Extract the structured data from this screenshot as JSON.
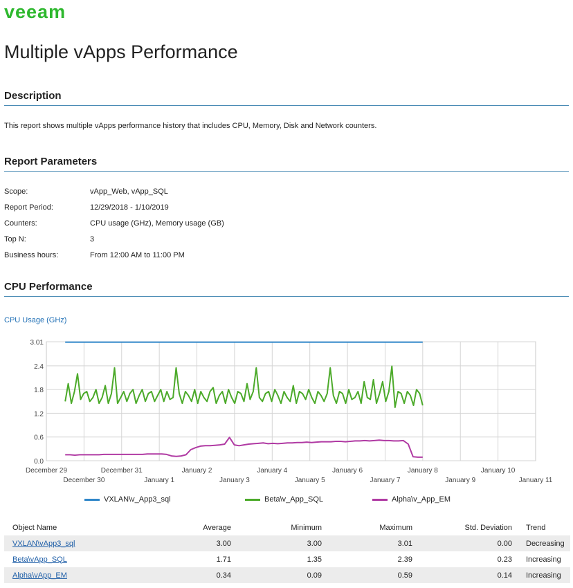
{
  "header": {
    "logo_text": "veeam",
    "title": "Multiple vApps Performance"
  },
  "description": {
    "heading": "Description",
    "text": "This report shows multiple vApps performance history that includes CPU, Memory, Disk and Network counters."
  },
  "parameters": {
    "heading": "Report Parameters",
    "rows": [
      {
        "label": "Scope:",
        "value": "vApp_Web, vApp_SQL"
      },
      {
        "label": "Report Period:",
        "value": "12/29/2018 - 1/10/2019"
      },
      {
        "label": "Counters:",
        "value": "CPU usage (GHz), Memory usage (GB)"
      },
      {
        "label": "Top N:",
        "value": "3"
      },
      {
        "label": "Business hours:",
        "value": "From 12:00 AM to 11:00 PM"
      }
    ]
  },
  "cpu": {
    "heading": "CPU Performance",
    "chart_title": "CPU Usage (GHz)",
    "legend": [
      {
        "name": "VXLAN\\v_App3_sql",
        "color": "#2f86c9"
      },
      {
        "name": "Beta\\v_App_SQL",
        "color": "#4caa2a"
      },
      {
        "name": "Alpha\\v_App_EM",
        "color": "#b03aa3"
      }
    ]
  },
  "chart_data": {
    "type": "line",
    "title": "CPU Usage (GHz)",
    "xlabel": "",
    "ylabel": "",
    "ylim": [
      0,
      3.01
    ],
    "yticks": [
      "3.01",
      "2.4",
      "1.8",
      "1.2",
      "0.6",
      "0.0"
    ],
    "ytick_values": [
      3.01,
      2.4,
      1.8,
      1.2,
      0.6,
      0.0
    ],
    "xticks": [
      "December 29",
      "December 30",
      "December 31",
      "January 1",
      "January 2",
      "January 3",
      "January 4",
      "January 5",
      "January 6",
      "January 7",
      "January 8",
      "January 9",
      "January 10",
      "January 11"
    ],
    "grid": true,
    "series": [
      {
        "name": "VXLAN\\v_App3_sql",
        "color": "#2f86c9",
        "x_start_day": 0.5,
        "x_end_day": 10.0,
        "values": [
          3.0,
          3.0,
          3.0,
          3.0,
          3.0,
          3.0,
          3.0,
          3.0,
          3.0,
          3.0,
          3.0,
          3.0,
          3.0,
          3.0,
          3.0,
          3.0,
          3.0,
          3.0,
          3.0,
          3.0
        ]
      },
      {
        "name": "Beta\\v_App_SQL",
        "color": "#4caa2a",
        "x_start_day": 0.5,
        "x_end_day": 10.0,
        "values": [
          1.5,
          1.95,
          1.45,
          1.75,
          2.2,
          1.55,
          1.7,
          1.75,
          1.5,
          1.6,
          1.8,
          1.45,
          1.6,
          1.9,
          1.45,
          1.7,
          2.35,
          1.45,
          1.6,
          1.75,
          1.5,
          1.7,
          1.8,
          1.45,
          1.65,
          1.8,
          1.5,
          1.7,
          1.75,
          1.5,
          1.65,
          1.8,
          1.5,
          1.75,
          1.55,
          1.6,
          2.35,
          1.7,
          1.45,
          1.75,
          1.65,
          1.5,
          1.8,
          1.45,
          1.75,
          1.6,
          1.5,
          1.75,
          1.85,
          1.45,
          1.65,
          1.75,
          1.45,
          1.8,
          1.6,
          1.45,
          1.75,
          1.7,
          1.5,
          1.95,
          1.55,
          1.75,
          2.35,
          1.6,
          1.5,
          1.7,
          1.75,
          1.5,
          1.8,
          1.65,
          1.45,
          1.75,
          1.6,
          1.5,
          1.9,
          1.45,
          1.75,
          1.7,
          1.55,
          1.8,
          1.6,
          1.45,
          1.75,
          1.65,
          1.5,
          1.7,
          2.35,
          1.65,
          1.45,
          1.75,
          1.7,
          1.45,
          1.8,
          1.55,
          1.6,
          1.75,
          1.45,
          2.0,
          1.6,
          1.55,
          2.05,
          1.45,
          1.7,
          2.0,
          1.5,
          1.75,
          2.39,
          1.35,
          1.75,
          1.7,
          1.45,
          1.75,
          1.65,
          1.4,
          1.8,
          1.7,
          1.4
        ]
      },
      {
        "name": "Alpha\\v_App_EM",
        "color": "#b03aa3",
        "x_start_day": 0.5,
        "x_end_day": 10.0,
        "values": [
          0.15,
          0.15,
          0.14,
          0.15,
          0.15,
          0.15,
          0.15,
          0.15,
          0.16,
          0.16,
          0.16,
          0.16,
          0.16,
          0.16,
          0.16,
          0.16,
          0.16,
          0.17,
          0.17,
          0.17,
          0.17,
          0.16,
          0.12,
          0.11,
          0.12,
          0.15,
          0.28,
          0.33,
          0.37,
          0.38,
          0.38,
          0.39,
          0.4,
          0.42,
          0.59,
          0.4,
          0.38,
          0.4,
          0.42,
          0.43,
          0.44,
          0.45,
          0.43,
          0.44,
          0.43,
          0.44,
          0.45,
          0.45,
          0.46,
          0.46,
          0.47,
          0.46,
          0.47,
          0.48,
          0.48,
          0.48,
          0.49,
          0.49,
          0.48,
          0.49,
          0.5,
          0.5,
          0.51,
          0.5,
          0.51,
          0.52,
          0.51,
          0.51,
          0.5,
          0.5,
          0.51,
          0.42,
          0.1,
          0.09,
          0.09
        ]
      }
    ]
  },
  "stats_table": {
    "columns": [
      "Object Name",
      "Average",
      "Minimum",
      "Maximum",
      "Std. Deviation",
      "Trend"
    ],
    "rows": [
      {
        "name": "VXLAN\\vApp3_sql",
        "average": "3.00",
        "minimum": "3.00",
        "maximum": "3.01",
        "std": "0.00",
        "trend": "Decreasing"
      },
      {
        "name": "Beta\\vApp_SQL",
        "average": "1.71",
        "minimum": "1.35",
        "maximum": "2.39",
        "std": "0.23",
        "trend": "Increasing"
      },
      {
        "name": "Alpha\\vApp_EM",
        "average": "0.34",
        "minimum": "0.09",
        "maximum": "0.59",
        "std": "0.14",
        "trend": "Increasing"
      }
    ]
  }
}
